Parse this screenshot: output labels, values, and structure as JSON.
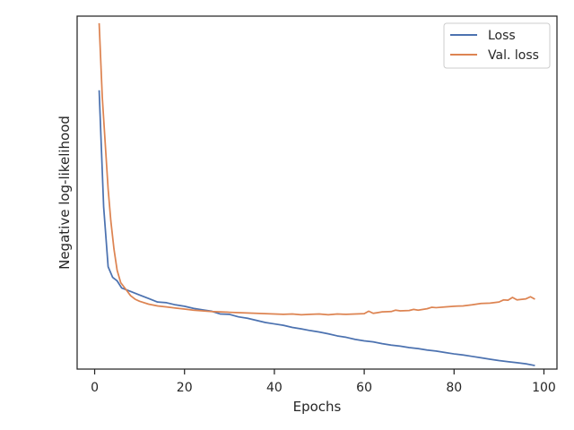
{
  "chart_data": {
    "type": "line",
    "title": "",
    "xlabel": "Epochs",
    "ylabel": "Negative log-likelihood",
    "xlim": [
      -3.9,
      102.9
    ],
    "ylim": [
      0.0,
      1.0
    ],
    "xticks": [
      0,
      20,
      40,
      60,
      80,
      100
    ],
    "show_yticks": false,
    "grid": false,
    "legend": "upper-right",
    "series": [
      {
        "name": "Loss",
        "color": "#4c72b0",
        "x": [
          1,
          2,
          3,
          4,
          5,
          6,
          8,
          10,
          12,
          14,
          16,
          18,
          20,
          22,
          24,
          26,
          28,
          30,
          32,
          34,
          36,
          38,
          40,
          42,
          44,
          46,
          48,
          50,
          52,
          54,
          56,
          58,
          60,
          62,
          64,
          66,
          68,
          70,
          72,
          74,
          76,
          78,
          80,
          82,
          84,
          86,
          88,
          90,
          92,
          94,
          96,
          98
        ],
        "y": [
          0.79,
          0.46,
          0.29,
          0.26,
          0.25,
          0.23,
          0.22,
          0.21,
          0.2,
          0.19,
          0.188,
          0.182,
          0.178,
          0.172,
          0.168,
          0.164,
          0.156,
          0.155,
          0.148,
          0.144,
          0.138,
          0.132,
          0.128,
          0.124,
          0.118,
          0.114,
          0.109,
          0.105,
          0.1,
          0.094,
          0.09,
          0.084,
          0.08,
          0.077,
          0.072,
          0.068,
          0.065,
          0.061,
          0.058,
          0.054,
          0.051,
          0.047,
          0.043,
          0.04,
          0.036,
          0.032,
          0.028,
          0.024,
          0.021,
          0.018,
          0.015,
          0.01
        ]
      },
      {
        "name": "Val. loss",
        "color": "#dd8452",
        "x": [
          1,
          1.7,
          2.4,
          3,
          3.6,
          4.3,
          5,
          5.8,
          7,
          8,
          9,
          10,
          12,
          14,
          16,
          18,
          20,
          22,
          24,
          26,
          28,
          30,
          32,
          34,
          36,
          38,
          40,
          42,
          44,
          46,
          48,
          50,
          52,
          54,
          56,
          58,
          60,
          61,
          62,
          63,
          64,
          66,
          67,
          68,
          70,
          71,
          72,
          74,
          75,
          76,
          78,
          80,
          82,
          84,
          86,
          88,
          90,
          91,
          92,
          93,
          94,
          96,
          97,
          98
        ],
        "y": [
          0.98,
          0.77,
          0.63,
          0.51,
          0.42,
          0.34,
          0.28,
          0.245,
          0.225,
          0.208,
          0.198,
          0.192,
          0.184,
          0.179,
          0.176,
          0.173,
          0.17,
          0.167,
          0.165,
          0.163,
          0.162,
          0.161,
          0.16,
          0.159,
          0.158,
          0.157,
          0.156,
          0.155,
          0.156,
          0.154,
          0.155,
          0.156,
          0.154,
          0.156,
          0.155,
          0.156,
          0.157,
          0.164,
          0.158,
          0.16,
          0.162,
          0.163,
          0.167,
          0.165,
          0.166,
          0.169,
          0.167,
          0.171,
          0.175,
          0.174,
          0.176,
          0.178,
          0.179,
          0.182,
          0.186,
          0.187,
          0.19,
          0.196,
          0.195,
          0.203,
          0.196,
          0.199,
          0.205,
          0.198
        ]
      }
    ]
  }
}
